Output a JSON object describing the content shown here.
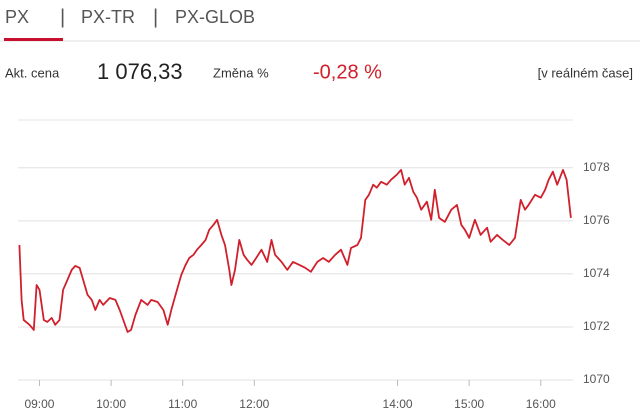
{
  "tabs": [
    "PX",
    "PX-TR",
    "PX-GLOB"
  ],
  "quote": {
    "price_label": "Akt. cena",
    "price": "1 076,33",
    "change_label": "Změna %",
    "change": "-0,28 %",
    "realtime": "[v reálném čase]"
  },
  "chart_data": {
    "type": "line",
    "color": "#d0202c",
    "x": [
      8.72,
      8.75,
      8.78,
      8.86,
      8.92,
      8.96,
      9.0,
      9.06,
      9.11,
      9.17,
      9.22,
      9.28,
      9.33,
      9.39,
      9.45,
      9.5,
      9.56,
      9.61,
      9.67,
      9.73,
      9.78,
      9.84,
      9.89,
      9.98,
      10.06,
      10.12,
      10.17,
      10.23,
      10.28,
      10.34,
      10.42,
      10.51,
      10.56,
      10.65,
      10.73,
      10.79,
      10.84,
      10.92,
      10.98,
      11.04,
      11.09,
      11.15,
      11.2,
      11.26,
      11.32,
      11.37,
      11.43,
      11.48,
      11.54,
      11.59,
      11.65,
      11.68,
      11.73,
      11.79,
      11.85,
      11.9,
      11.96,
      12.01,
      12.1,
      12.18,
      12.24,
      12.29,
      12.38,
      12.46,
      12.54,
      12.63,
      12.71,
      12.79,
      12.88,
      12.96,
      13.04,
      13.13,
      13.21,
      13.3,
      13.35,
      13.44,
      13.49,
      13.55,
      13.6,
      13.66,
      13.71,
      13.77,
      13.85,
      13.91,
      13.99,
      14.05,
      14.1,
      14.16,
      14.22,
      14.27,
      14.33,
      14.41,
      14.47,
      14.52,
      14.58,
      14.66,
      14.75,
      14.83,
      14.89,
      14.94,
      15.0,
      15.08,
      15.16,
      15.25,
      15.3,
      15.39,
      15.47,
      15.56,
      15.64,
      15.72,
      15.78,
      15.83,
      15.92,
      16.0,
      16.06,
      16.11,
      16.17,
      16.23,
      16.31,
      16.36,
      16.42
    ],
    "values": [
      1075.09,
      1073.02,
      1072.26,
      1072.08,
      1071.89,
      1073.58,
      1073.4,
      1072.26,
      1072.19,
      1072.34,
      1072.08,
      1072.26,
      1073.4,
      1073.77,
      1074.15,
      1074.3,
      1074.23,
      1073.77,
      1073.21,
      1073.02,
      1072.64,
      1073.02,
      1072.83,
      1073.09,
      1073.02,
      1072.64,
      1072.26,
      1071.81,
      1071.89,
      1072.45,
      1073.02,
      1072.83,
      1073.02,
      1072.94,
      1072.64,
      1072.08,
      1072.64,
      1073.4,
      1073.96,
      1074.34,
      1074.6,
      1074.72,
      1074.91,
      1075.09,
      1075.28,
      1075.66,
      1075.85,
      1076.04,
      1075.47,
      1075.09,
      1074.15,
      1073.58,
      1074.15,
      1075.28,
      1074.72,
      1074.53,
      1074.34,
      1074.53,
      1074.91,
      1074.45,
      1075.28,
      1074.72,
      1074.45,
      1074.15,
      1074.45,
      1074.34,
      1074.23,
      1074.08,
      1074.45,
      1074.6,
      1074.45,
      1074.72,
      1074.91,
      1074.34,
      1074.98,
      1075.09,
      1075.36,
      1076.79,
      1076.98,
      1077.36,
      1077.25,
      1077.47,
      1077.36,
      1077.55,
      1077.74,
      1077.92,
      1077.36,
      1077.62,
      1077.09,
      1076.87,
      1076.42,
      1076.72,
      1076.04,
      1077.17,
      1076.11,
      1075.96,
      1076.42,
      1076.6,
      1075.85,
      1075.66,
      1075.36,
      1076.04,
      1075.47,
      1075.74,
      1075.21,
      1075.47,
      1075.28,
      1075.09,
      1075.36,
      1076.79,
      1076.42,
      1076.6,
      1076.98,
      1076.87,
      1077.17,
      1077.55,
      1077.85,
      1077.36,
      1077.92,
      1077.55,
      1076.11
    ],
    "xlim": [
      8.7,
      16.45
    ],
    "ylim": [
      1070,
      1079.8
    ],
    "xticks": [
      {
        "value": 9,
        "label": "09:00"
      },
      {
        "value": 10,
        "label": "10:00"
      },
      {
        "value": 11,
        "label": "11:00"
      },
      {
        "value": 12,
        "label": "12:00"
      },
      {
        "value": 14,
        "label": "14:00"
      },
      {
        "value": 15,
        "label": "15:00"
      },
      {
        "value": 16,
        "label": "16:00"
      }
    ],
    "yticks": [
      1070,
      1072,
      1074,
      1076,
      1078
    ],
    "grid": true
  }
}
